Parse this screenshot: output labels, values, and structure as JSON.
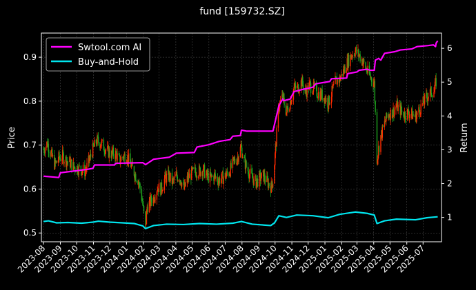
{
  "chart_data": {
    "type": "line",
    "title": "fund [159732.SZ]",
    "xlabel": "",
    "ylabel_left": "Price",
    "ylabel_right": "Return",
    "ylim_left": [
      0.48,
      0.955
    ],
    "ylim_right": [
      0.28,
      6.45
    ],
    "xlim": [
      "2023-07-28",
      "2025-08-04"
    ],
    "x_tick_labels": [
      "2023-08",
      "2023-09",
      "2023-10",
      "2023-11",
      "2023-12",
      "2024-01",
      "2024-02",
      "2024-03",
      "2024-04",
      "2024-05",
      "2024-06",
      "2024-07",
      "2024-08",
      "2024-09",
      "2024-10",
      "2024-11",
      "2024-12",
      "2025-01",
      "2025-02",
      "2025-03",
      "2025-04",
      "2025-05",
      "2025-06",
      "2025-07"
    ],
    "y_ticks_left": [
      "0.5",
      "0.6",
      "0.7",
      "0.8",
      "0.9"
    ],
    "y_ticks_right": [
      "1",
      "2",
      "3",
      "4",
      "5",
      "6"
    ],
    "grid": true,
    "legend_position": "top-left",
    "colors": {
      "background": "#000000",
      "ai": "#ff00ff",
      "buyhold": "#00e5ee",
      "candle_up": "#ff2a00",
      "candle_down": "#1fa81f",
      "grid": "#555555",
      "text": "#ffffff"
    },
    "price_series": {
      "name": "fund price (candlestick)",
      "points": [
        [
          "2023-08-01",
          0.69
        ],
        [
          "2023-08-08",
          0.705
        ],
        [
          "2023-08-15",
          0.68
        ],
        [
          "2023-08-22",
          0.655
        ],
        [
          "2023-08-29",
          0.67
        ],
        [
          "2023-09-05",
          0.675
        ],
        [
          "2023-09-12",
          0.665
        ],
        [
          "2023-09-19",
          0.66
        ],
        [
          "2023-09-26",
          0.65
        ],
        [
          "2023-10-10",
          0.645
        ],
        [
          "2023-10-17",
          0.64
        ],
        [
          "2023-10-24",
          0.665
        ],
        [
          "2023-10-31",
          0.69
        ],
        [
          "2023-11-07",
          0.71
        ],
        [
          "2023-11-14",
          0.705
        ],
        [
          "2023-11-21",
          0.695
        ],
        [
          "2023-11-28",
          0.685
        ],
        [
          "2023-12-05",
          0.68
        ],
        [
          "2023-12-12",
          0.68
        ],
        [
          "2023-12-19",
          0.665
        ],
        [
          "2023-12-26",
          0.675
        ],
        [
          "2024-01-02",
          0.675
        ],
        [
          "2024-01-09",
          0.655
        ],
        [
          "2024-01-16",
          0.635
        ],
        [
          "2024-01-23",
          0.62
        ],
        [
          "2024-01-30",
          0.575
        ],
        [
          "2024-02-05",
          0.51
        ],
        [
          "2024-02-08",
          0.56
        ],
        [
          "2024-02-20",
          0.58
        ],
        [
          "2024-02-27",
          0.605
        ],
        [
          "2024-03-05",
          0.6
        ],
        [
          "2024-03-12",
          0.625
        ],
        [
          "2024-03-19",
          0.63
        ],
        [
          "2024-03-26",
          0.615
        ],
        [
          "2024-04-02",
          0.63
        ],
        [
          "2024-04-09",
          0.625
        ],
        [
          "2024-04-16",
          0.6
        ],
        [
          "2024-04-23",
          0.625
        ],
        [
          "2024-04-30",
          0.635
        ],
        [
          "2024-05-07",
          0.64
        ],
        [
          "2024-05-14",
          0.64
        ],
        [
          "2024-05-21",
          0.645
        ],
        [
          "2024-05-28",
          0.63
        ],
        [
          "2024-06-04",
          0.625
        ],
        [
          "2024-06-11",
          0.63
        ],
        [
          "2024-06-18",
          0.62
        ],
        [
          "2024-06-25",
          0.625
        ],
        [
          "2024-07-02",
          0.63
        ],
        [
          "2024-07-09",
          0.64
        ],
        [
          "2024-07-16",
          0.66
        ],
        [
          "2024-07-23",
          0.67
        ],
        [
          "2024-07-30",
          0.695
        ],
        [
          "2024-08-06",
          0.66
        ],
        [
          "2024-08-13",
          0.64
        ],
        [
          "2024-08-20",
          0.625
        ],
        [
          "2024-08-27",
          0.615
        ],
        [
          "2024-09-03",
          0.625
        ],
        [
          "2024-09-10",
          0.63
        ],
        [
          "2024-09-17",
          0.615
        ],
        [
          "2024-09-24",
          0.605
        ],
        [
          "2024-09-27",
          0.62
        ],
        [
          "2024-09-30",
          0.66
        ],
        [
          "2024-10-08",
          0.79
        ],
        [
          "2024-10-15",
          0.81
        ],
        [
          "2024-10-22",
          0.775
        ],
        [
          "2024-10-29",
          0.8
        ],
        [
          "2024-11-05",
          0.83
        ],
        [
          "2024-11-12",
          0.83
        ],
        [
          "2024-11-19",
          0.845
        ],
        [
          "2024-11-26",
          0.82
        ],
        [
          "2024-12-03",
          0.835
        ],
        [
          "2024-12-10",
          0.83
        ],
        [
          "2024-12-17",
          0.82
        ],
        [
          "2024-12-24",
          0.815
        ],
        [
          "2024-12-31",
          0.81
        ],
        [
          "2025-01-07",
          0.795
        ],
        [
          "2025-01-14",
          0.82
        ],
        [
          "2025-01-21",
          0.845
        ],
        [
          "2025-01-28",
          0.85
        ],
        [
          "2025-02-05",
          0.87
        ],
        [
          "2025-02-12",
          0.89
        ],
        [
          "2025-02-19",
          0.905
        ],
        [
          "2025-02-26",
          0.915
        ],
        [
          "2025-03-05",
          0.905
        ],
        [
          "2025-03-12",
          0.89
        ],
        [
          "2025-03-19",
          0.87
        ],
        [
          "2025-03-26",
          0.855
        ],
        [
          "2025-04-02",
          0.84
        ],
        [
          "2025-04-07",
          0.67
        ],
        [
          "2025-04-14",
          0.72
        ],
        [
          "2025-04-21",
          0.75
        ],
        [
          "2025-04-28",
          0.77
        ],
        [
          "2025-05-06",
          0.775
        ],
        [
          "2025-05-13",
          0.79
        ],
        [
          "2025-05-20",
          0.78
        ],
        [
          "2025-05-27",
          0.77
        ],
        [
          "2025-06-03",
          0.775
        ],
        [
          "2025-06-10",
          0.77
        ],
        [
          "2025-06-17",
          0.765
        ],
        [
          "2025-06-24",
          0.78
        ],
        [
          "2025-07-01",
          0.795
        ],
        [
          "2025-07-08",
          0.81
        ],
        [
          "2025-07-15",
          0.82
        ],
        [
          "2025-07-22",
          0.825
        ],
        [
          "2025-07-25",
          0.845
        ]
      ]
    },
    "series": [
      {
        "name": "Swtool.com AI",
        "axis": "right",
        "color": "#ff00ff",
        "points": [
          [
            "2023-08-01",
            2.22
          ],
          [
            "2023-08-29",
            2.18
          ],
          [
            "2023-09-01",
            2.32
          ],
          [
            "2023-09-20",
            2.36
          ],
          [
            "2023-10-20",
            2.42
          ],
          [
            "2023-10-31",
            2.45
          ],
          [
            "2023-11-03",
            2.55
          ],
          [
            "2023-12-10",
            2.55
          ],
          [
            "2023-12-12",
            2.6
          ],
          [
            "2024-01-31",
            2.62
          ],
          [
            "2024-02-05",
            2.56
          ],
          [
            "2024-02-20",
            2.72
          ],
          [
            "2024-03-20",
            2.78
          ],
          [
            "2024-04-02",
            2.9
          ],
          [
            "2024-05-05",
            2.92
          ],
          [
            "2024-05-10",
            3.08
          ],
          [
            "2024-06-01",
            3.15
          ],
          [
            "2024-06-20",
            3.25
          ],
          [
            "2024-07-10",
            3.3
          ],
          [
            "2024-07-15",
            3.4
          ],
          [
            "2024-07-29",
            3.42
          ],
          [
            "2024-07-31",
            3.58
          ],
          [
            "2024-08-10",
            3.55
          ],
          [
            "2024-09-27",
            3.55
          ],
          [
            "2024-09-30",
            3.75
          ],
          [
            "2024-10-08",
            4.3
          ],
          [
            "2024-10-15",
            4.5
          ],
          [
            "2024-10-17",
            4.45
          ],
          [
            "2024-10-29",
            4.5
          ],
          [
            "2024-11-05",
            4.72
          ],
          [
            "2024-11-20",
            4.78
          ],
          [
            "2024-12-10",
            4.85
          ],
          [
            "2024-12-15",
            4.95
          ],
          [
            "2025-01-10",
            5.02
          ],
          [
            "2025-01-13",
            5.1
          ],
          [
            "2025-02-10",
            5.12
          ],
          [
            "2025-02-12",
            5.25
          ],
          [
            "2025-03-01",
            5.3
          ],
          [
            "2025-03-05",
            5.35
          ],
          [
            "2025-03-20",
            5.38
          ],
          [
            "2025-03-26",
            5.35
          ],
          [
            "2025-04-02",
            5.35
          ],
          [
            "2025-04-04",
            5.65
          ],
          [
            "2025-04-10",
            5.7
          ],
          [
            "2025-04-14",
            5.65
          ],
          [
            "2025-04-21",
            5.85
          ],
          [
            "2025-05-10",
            5.9
          ],
          [
            "2025-05-20",
            5.95
          ],
          [
            "2025-06-10",
            5.98
          ],
          [
            "2025-06-20",
            6.05
          ],
          [
            "2025-07-10",
            6.08
          ],
          [
            "2025-07-20",
            6.1
          ],
          [
            "2025-07-24",
            6.05
          ],
          [
            "2025-07-25",
            6.15
          ],
          [
            "2025-07-28",
            6.22
          ]
        ]
      },
      {
        "name": "Buy-and-Hold",
        "axis": "right",
        "color": "#00e5ee",
        "points": [
          [
            "2023-08-01",
            0.88
          ],
          [
            "2023-08-10",
            0.9
          ],
          [
            "2023-08-25",
            0.84
          ],
          [
            "2023-09-15",
            0.85
          ],
          [
            "2023-10-10",
            0.83
          ],
          [
            "2023-10-31",
            0.86
          ],
          [
            "2023-11-10",
            0.89
          ],
          [
            "2023-12-01",
            0.86
          ],
          [
            "2023-12-25",
            0.84
          ],
          [
            "2024-01-15",
            0.82
          ],
          [
            "2024-01-31",
            0.75
          ],
          [
            "2024-02-05",
            0.67
          ],
          [
            "2024-02-20",
            0.76
          ],
          [
            "2024-03-15",
            0.8
          ],
          [
            "2024-04-15",
            0.79
          ],
          [
            "2024-05-15",
            0.82
          ],
          [
            "2024-06-15",
            0.8
          ],
          [
            "2024-07-15",
            0.83
          ],
          [
            "2024-07-31",
            0.88
          ],
          [
            "2024-08-20",
            0.8
          ],
          [
            "2024-09-23",
            0.76
          ],
          [
            "2024-09-30",
            0.84
          ],
          [
            "2024-10-08",
            1.05
          ],
          [
            "2024-10-22",
            1.0
          ],
          [
            "2024-11-10",
            1.07
          ],
          [
            "2024-12-10",
            1.05
          ],
          [
            "2025-01-07",
            0.99
          ],
          [
            "2025-01-28",
            1.09
          ],
          [
            "2025-02-26",
            1.16
          ],
          [
            "2025-03-20",
            1.12
          ],
          [
            "2025-04-02",
            1.07
          ],
          [
            "2025-04-07",
            0.82
          ],
          [
            "2025-04-21",
            0.9
          ],
          [
            "2025-05-13",
            0.95
          ],
          [
            "2025-06-17",
            0.93
          ],
          [
            "2025-07-08",
            0.99
          ],
          [
            "2025-07-28",
            1.02
          ]
        ]
      }
    ]
  }
}
